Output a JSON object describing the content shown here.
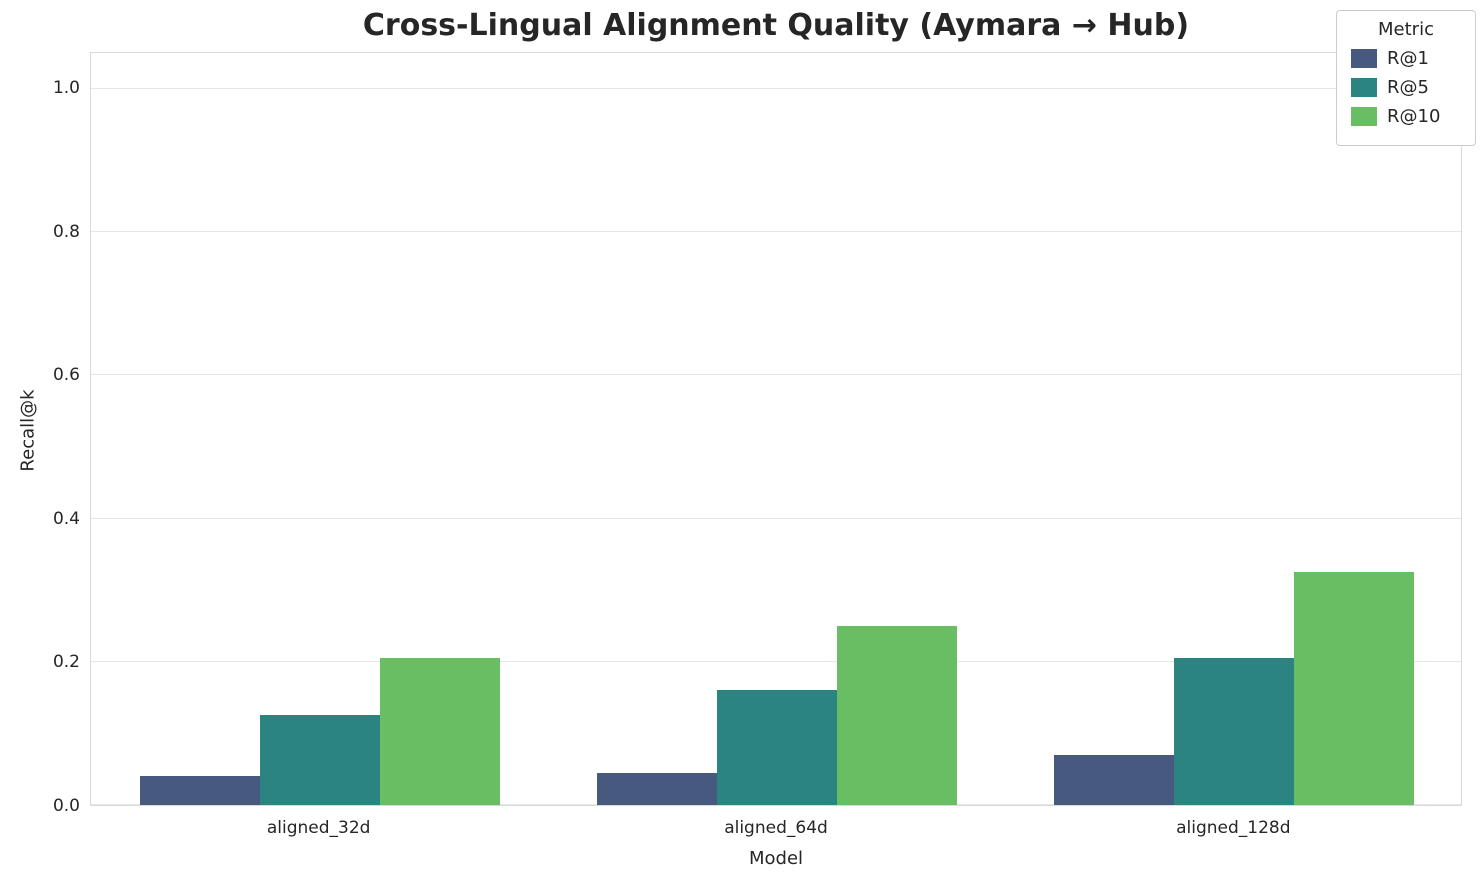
{
  "title": "Cross-Lingual Alignment Quality (Aymara → Hub)",
  "chart_data": {
    "type": "bar",
    "title": "Cross-Lingual Alignment Quality (Aymara → Hub)",
    "xlabel": "Model",
    "ylabel": "Recall@k",
    "categories": [
      "aligned_32d",
      "aligned_64d",
      "aligned_128d"
    ],
    "series": [
      {
        "name": "R@1",
        "color": "#47597f",
        "values": [
          0.04,
          0.045,
          0.07
        ]
      },
      {
        "name": "R@5",
        "color": "#2b8480",
        "values": [
          0.125,
          0.16,
          0.205
        ]
      },
      {
        "name": "R@10",
        "color": "#69bd63",
        "values": [
          0.205,
          0.25,
          0.325
        ]
      }
    ],
    "ylim": [
      0,
      1.05
    ],
    "yticks": [
      0.0,
      0.2,
      0.4,
      0.6,
      0.8,
      1.0
    ],
    "ytick_labels": [
      "0.0",
      "0.2",
      "0.4",
      "0.6",
      "0.8",
      "1.0"
    ],
    "legend_title": "Metric",
    "legend_position": "upper right",
    "grid": true
  }
}
